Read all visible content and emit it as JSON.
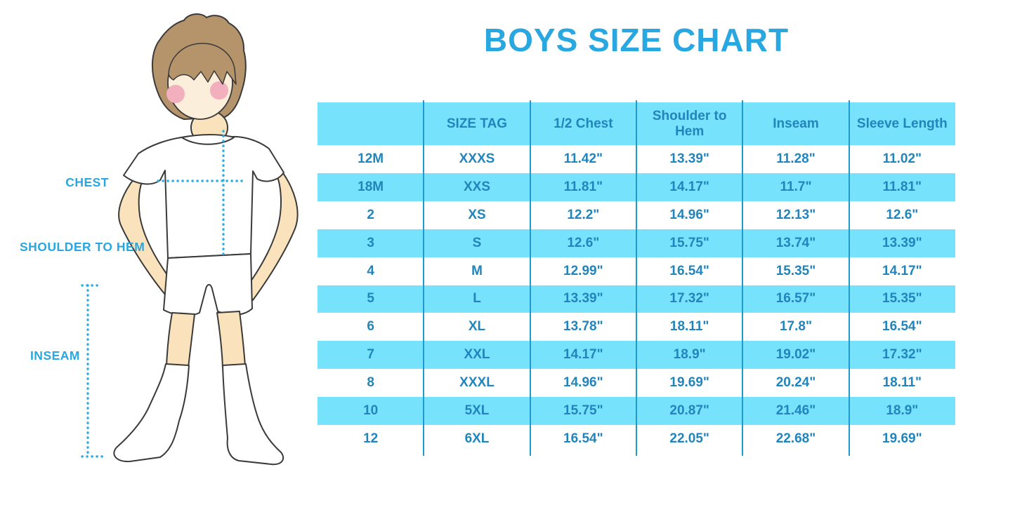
{
  "title": "BOYS SIZE CHART",
  "figure": {
    "description": "cartoon-boy-with-measurement-lines",
    "labels": {
      "chest": "CHEST",
      "shoulder_to_hem": "SHOULDER TO HEM",
      "inseam": "INSEAM"
    }
  },
  "colors": {
    "accent_blue": "#29A7E0",
    "row_band": "#76E2FB",
    "table_text": "#2185BD",
    "column_divider": "#1E9BCB",
    "dotted_line": "#2CAEE4",
    "skin": "#FAE3BC",
    "face": "#FBEEDA",
    "hair": "#B5946B",
    "cheek": "#F2AFBE",
    "outline": "#3A3A3A",
    "background": "#FFFFFF"
  },
  "chart_data": {
    "type": "table",
    "title": "BOYS SIZE CHART",
    "units": "inches",
    "columns": [
      "",
      "SIZE TAG",
      "1/2 Chest",
      "Shoulder to Hem",
      "Inseam",
      "Sleeve Length"
    ],
    "rows": [
      [
        "12M",
        "XXXS",
        "11.42\"",
        "13.39\"",
        "11.28\"",
        "11.02\""
      ],
      [
        "18M",
        "XXS",
        "11.81\"",
        "14.17\"",
        "11.7\"",
        "11.81\""
      ],
      [
        "2",
        "XS",
        "12.2\"",
        "14.96\"",
        "12.13\"",
        "12.6\""
      ],
      [
        "3",
        "S",
        "12.6\"",
        "15.75\"",
        "13.74\"",
        "13.39\""
      ],
      [
        "4",
        "M",
        "12.99\"",
        "16.54\"",
        "15.35\"",
        "14.17\""
      ],
      [
        "5",
        "L",
        "13.39\"",
        "17.32\"",
        "16.57\"",
        "15.35\""
      ],
      [
        "6",
        "XL",
        "13.78\"",
        "18.11\"",
        "17.8\"",
        "16.54\""
      ],
      [
        "7",
        "XXL",
        "14.17\"",
        "18.9\"",
        "19.02\"",
        "17.32\""
      ],
      [
        "8",
        "XXXL",
        "14.96\"",
        "19.69\"",
        "20.24\"",
        "18.11\""
      ],
      [
        "10",
        "5XL",
        "15.75\"",
        "20.87\"",
        "21.46\"",
        "18.9\""
      ],
      [
        "12",
        "6XL",
        "16.54\"",
        "22.05\"",
        "22.68\"",
        "19.69\""
      ]
    ],
    "banded_row_indices": [
      1,
      3,
      5,
      7,
      9
    ],
    "header_banded": true,
    "grid": "vertical-dividers-only",
    "legend_position": "none"
  }
}
